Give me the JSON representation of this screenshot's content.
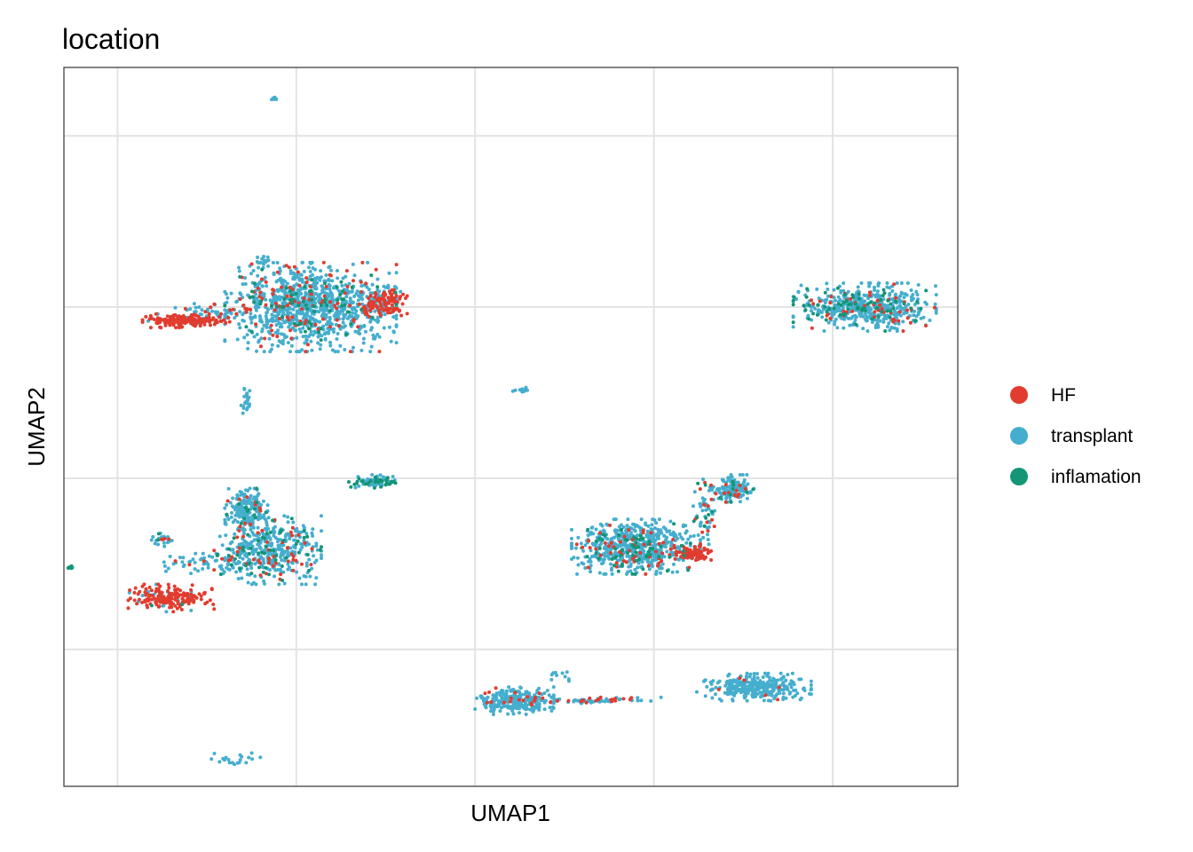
{
  "chart_data": {
    "type": "scatter",
    "title": "location",
    "xlabel": "UMAP1",
    "ylabel": "UMAP2",
    "x_tick_labels_shown": false,
    "y_tick_labels_shown": false,
    "xlim": [
      -10.5,
      14.5
    ],
    "ylim": [
      -9,
      12
    ],
    "x_gridlines": [
      -9,
      -4,
      1,
      6,
      11
    ],
    "y_gridlines": [
      -5,
      0,
      5,
      10
    ],
    "grid": true,
    "legend_position": "right",
    "series": [
      {
        "name": "HF",
        "color": "#E13C2F"
      },
      {
        "name": "transplant",
        "color": "#45AECE"
      },
      {
        "name": "inflamation",
        "color": "#139576"
      }
    ],
    "clusters": [
      {
        "center": [
          -3.6,
          5.0
        ],
        "spread": [
          2.4,
          1.3
        ],
        "n": 1050,
        "mix": [
          0.09,
          0.82,
          0.09
        ]
      },
      {
        "center": [
          -1.5,
          5.1
        ],
        "spread": [
          0.6,
          0.4
        ],
        "n": 120,
        "mix": [
          0.85,
          0.15,
          0.0
        ]
      },
      {
        "center": [
          -7.1,
          4.6
        ],
        "spread": [
          1.2,
          0.2
        ],
        "n": 190,
        "mix": [
          0.92,
          0.08,
          0.0
        ]
      },
      {
        "center": [
          -6.0,
          4.9
        ],
        "spread": [
          1.4,
          0.2
        ],
        "n": 50,
        "mix": [
          0.2,
          0.8,
          0.0
        ]
      },
      {
        "center": [
          -4.9,
          6.3
        ],
        "spread": [
          0.4,
          0.2
        ],
        "n": 18,
        "mix": [
          0.0,
          1.0,
          0.0
        ]
      },
      {
        "center": [
          -5.4,
          2.3
        ],
        "spread": [
          0.2,
          0.4
        ],
        "n": 25,
        "mix": [
          0.0,
          1.0,
          0.0
        ]
      },
      {
        "center": [
          -4.6,
          11.1
        ],
        "spread": [
          0.1,
          0.05
        ],
        "n": 10,
        "mix": [
          0.0,
          1.0,
          0.0
        ]
      },
      {
        "center": [
          -5.7,
          -8.2
        ],
        "spread": [
          0.7,
          0.2
        ],
        "n": 20,
        "mix": [
          0.0,
          1.0,
          0.0
        ]
      },
      {
        "center": [
          -1.8,
          -0.1
        ],
        "spread": [
          0.8,
          0.2
        ],
        "n": 80,
        "mix": [
          0.0,
          0.55,
          0.45
        ]
      },
      {
        "center": [
          2.2,
          2.6
        ],
        "spread": [
          0.4,
          0.1
        ],
        "n": 10,
        "mix": [
          0.0,
          1.0,
          0.0
        ]
      },
      {
        "center": [
          -4.8,
          -2.1
        ],
        "spread": [
          1.5,
          1.0
        ],
        "n": 450,
        "mix": [
          0.1,
          0.8,
          0.1
        ]
      },
      {
        "center": [
          -5.4,
          -0.9
        ],
        "spread": [
          0.6,
          0.6
        ],
        "n": 180,
        "mix": [
          0.07,
          0.85,
          0.08
        ]
      },
      {
        "center": [
          -7.5,
          -3.5
        ],
        "spread": [
          1.2,
          0.4
        ],
        "n": 190,
        "mix": [
          0.88,
          0.1,
          0.02
        ]
      },
      {
        "center": [
          -6.5,
          -2.5
        ],
        "spread": [
          1.2,
          0.3
        ],
        "n": 60,
        "mix": [
          0.05,
          0.85,
          0.1
        ]
      },
      {
        "center": [
          -7.8,
          -1.8
        ],
        "spread": [
          0.4,
          0.2
        ],
        "n": 25,
        "mix": [
          0.1,
          0.8,
          0.1
        ]
      },
      {
        "center": [
          -10.3,
          -2.6
        ],
        "spread": [
          0.1,
          0.05
        ],
        "n": 6,
        "mix": [
          0.0,
          0.3,
          0.7
        ]
      },
      {
        "center": [
          5.5,
          -2.0
        ],
        "spread": [
          1.8,
          0.8
        ],
        "n": 650,
        "mix": [
          0.1,
          0.8,
          0.1
        ]
      },
      {
        "center": [
          7.1,
          -2.2
        ],
        "spread": [
          0.5,
          0.2
        ],
        "n": 100,
        "mix": [
          0.92,
          0.08,
          0.0
        ]
      },
      {
        "center": [
          8.2,
          -0.3
        ],
        "spread": [
          0.6,
          0.4
        ],
        "n": 150,
        "mix": [
          0.05,
          0.9,
          0.05
        ]
      },
      {
        "center": [
          7.4,
          -1.0
        ],
        "spread": [
          0.3,
          1.0
        ],
        "n": 60,
        "mix": [
          0.25,
          0.65,
          0.1
        ]
      },
      {
        "center": [
          11.9,
          5.0
        ],
        "spread": [
          2.0,
          0.7
        ],
        "n": 550,
        "mix": [
          0.08,
          0.8,
          0.12
        ]
      },
      {
        "center": [
          2.1,
          -6.5
        ],
        "spread": [
          1.1,
          0.4
        ],
        "n": 260,
        "mix": [
          0.06,
          0.94,
          0.0
        ]
      },
      {
        "center": [
          4.2,
          -6.5
        ],
        "spread": [
          2.0,
          0.1
        ],
        "n": 80,
        "mix": [
          0.25,
          0.75,
          0.0
        ]
      },
      {
        "center": [
          8.8,
          -6.1
        ],
        "spread": [
          1.6,
          0.4
        ],
        "n": 320,
        "mix": [
          0.02,
          0.98,
          0.0
        ]
      },
      {
        "center": [
          3.4,
          -5.8
        ],
        "spread": [
          0.3,
          0.2
        ],
        "n": 10,
        "mix": [
          0.0,
          1.0,
          0.0
        ]
      }
    ]
  }
}
